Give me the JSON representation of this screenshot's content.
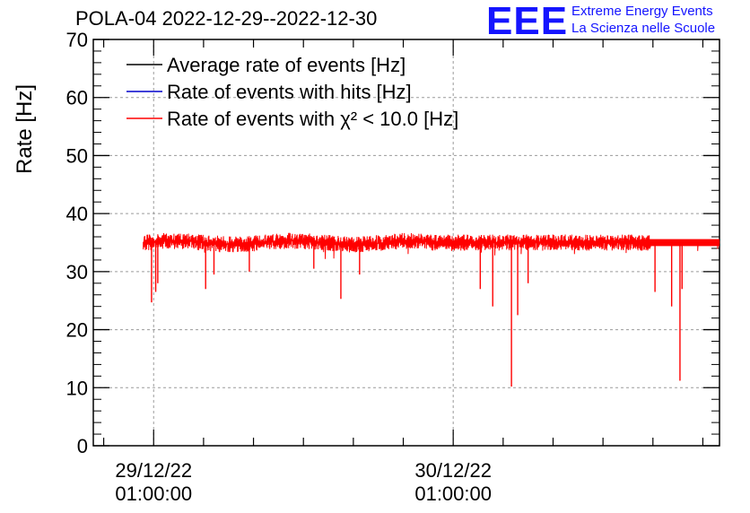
{
  "chart_data": {
    "type": "line",
    "title": "POLA-04 2022-12-29--2022-12-30",
    "xlabel": "",
    "ylabel": "Rate [Hz]",
    "ylim": [
      0,
      70
    ],
    "yticks": [
      0,
      10,
      20,
      30,
      40,
      50,
      60,
      70
    ],
    "xticks": [
      {
        "x": "2022-12-29 01:00:00",
        "line1": "29/12/22",
        "line2": "01:00:00"
      },
      {
        "x": "2022-12-30 01:00:00",
        "line1": "30/12/22",
        "line2": "01:00:00"
      }
    ],
    "xlim": [
      "2022-12-28 20:10:00",
      "2022-12-30 22:20:00"
    ],
    "grid": true,
    "legend_position": "top-left",
    "series": [
      {
        "name": "Average rate of events [Hz]",
        "color": "#000000",
        "baseline": 35.0
      },
      {
        "name": "Rate of events with hits [Hz]",
        "color": "#0000cc",
        "baseline": 35.0
      },
      {
        "name": "Rate of events with χ² < 10.0 [Hz]",
        "color": "#ff0000",
        "baseline": 35.0,
        "start": "2022-12-29 00:10:00",
        "end": "2022-12-30 22:20:00",
        "dips": [
          {
            "x": "2022-12-29 00:50:00",
            "y": 24.7
          },
          {
            "x": "2022-12-29 01:10:00",
            "y": 26.5
          },
          {
            "x": "2022-12-29 01:20:00",
            "y": 28.0
          },
          {
            "x": "2022-12-29 05:10:00",
            "y": 27.0
          },
          {
            "x": "2022-12-29 05:50:00",
            "y": 29.5
          },
          {
            "x": "2022-12-29 08:40:00",
            "y": 30.0
          },
          {
            "x": "2022-12-29 13:50:00",
            "y": 30.5
          },
          {
            "x": "2022-12-29 16:00:00",
            "y": 25.3
          },
          {
            "x": "2022-12-29 17:30:00",
            "y": 29.5
          },
          {
            "x": "2022-12-30 03:10:00",
            "y": 27.0
          },
          {
            "x": "2022-12-30 04:10:00",
            "y": 24.0
          },
          {
            "x": "2022-12-30 05:40:00",
            "y": 10.2
          },
          {
            "x": "2022-12-30 06:10:00",
            "y": 22.5
          },
          {
            "x": "2022-12-30 07:00:00",
            "y": 28.0
          },
          {
            "x": "2022-12-30 17:10:00",
            "y": 26.5
          },
          {
            "x": "2022-12-30 18:30:00",
            "y": 24.0
          },
          {
            "x": "2022-12-30 19:10:00",
            "y": 11.2
          },
          {
            "x": "2022-12-30 19:20:00",
            "y": 27.0
          }
        ]
      }
    ]
  },
  "branding": {
    "logo": "EEE",
    "line1": "Extreme Energy Events",
    "line2": "La Scienza nelle Scuole",
    "color": "#1414ff"
  }
}
